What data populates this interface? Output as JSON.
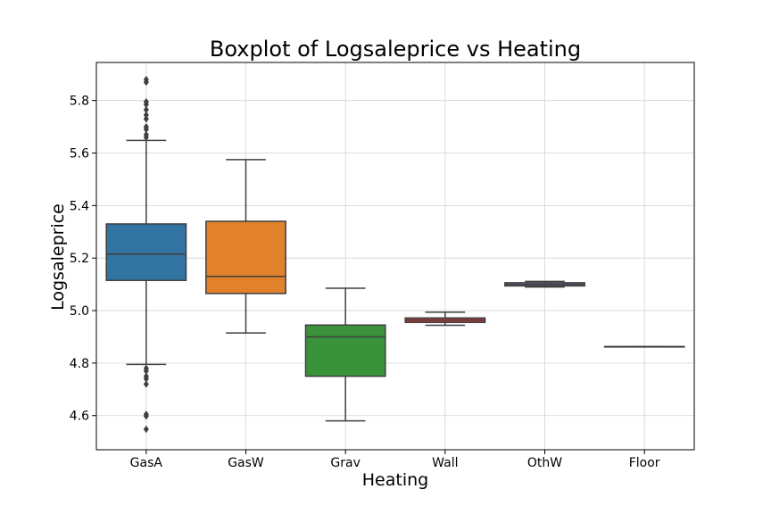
{
  "chart_data": {
    "type": "boxplot",
    "title": "Boxplot of Logsaleprice vs Heating",
    "xlabel": "Heating",
    "ylabel": "Logsaleprice",
    "ylim": [
      4.47,
      5.945
    ],
    "yticks": [
      4.6,
      4.8,
      5.0,
      5.2,
      5.4,
      5.6,
      5.8
    ],
    "ytick_labels": [
      "4.6",
      "4.8",
      "5.0",
      "5.2",
      "5.4",
      "5.6",
      "5.8"
    ],
    "grid": true,
    "legend": "none",
    "categories": [
      "GasA",
      "GasW",
      "Grav",
      "Wall",
      "OthW",
      "Floor"
    ],
    "colors": [
      "#3274a1",
      "#e1812c",
      "#3a923a",
      "#c03d3e",
      "#9372b2",
      "#845b53"
    ],
    "boxes": [
      {
        "category": "GasA",
        "whislo": 4.795,
        "q1": 5.115,
        "med": 5.215,
        "q3": 5.33,
        "whishi": 5.648,
        "fliers": [
          4.78,
          4.77,
          4.75,
          4.74,
          4.72,
          4.605,
          4.598,
          4.548,
          5.66,
          5.67,
          5.69,
          5.7,
          5.73,
          5.745,
          5.765,
          5.785,
          5.795,
          5.87,
          5.88
        ]
      },
      {
        "category": "GasW",
        "whislo": 4.915,
        "q1": 5.065,
        "med": 5.13,
        "q3": 5.34,
        "whishi": 5.575,
        "fliers": []
      },
      {
        "category": "Grav",
        "whislo": 4.58,
        "q1": 4.75,
        "med": 4.9,
        "q3": 4.945,
        "whishi": 5.085,
        "fliers": []
      },
      {
        "category": "Wall",
        "whislo": 4.944,
        "q1": 4.955,
        "med": 4.964,
        "q3": 4.972,
        "whishi": 4.994,
        "fliers": []
      },
      {
        "category": "OthW",
        "whislo": 5.09,
        "q1": 5.094,
        "med": 5.1,
        "q3": 5.106,
        "whishi": 5.111,
        "fliers": []
      },
      {
        "category": "Floor",
        "whislo": 4.863,
        "q1": 4.863,
        "med": 4.863,
        "q3": 4.863,
        "whishi": 4.863,
        "fliers": []
      }
    ]
  }
}
